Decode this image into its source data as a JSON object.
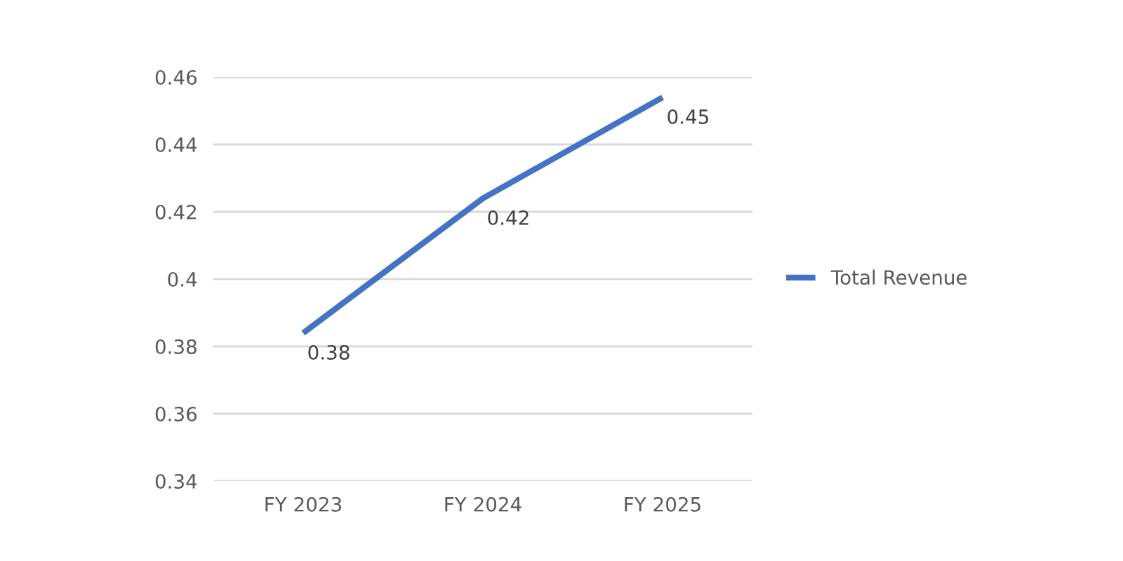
{
  "chart_data": {
    "type": "line",
    "categories": [
      "FY 2023",
      "FY 2024",
      "FY 2025"
    ],
    "series": [
      {
        "name": "Total Revenue",
        "color": "#4472c4",
        "values": [
          0.384,
          0.424,
          0.454
        ],
        "value_labels": [
          "0.38",
          "0.42",
          "0.45"
        ]
      }
    ],
    "ylim": [
      0.34,
      0.46
    ],
    "yticks": [
      0.34,
      0.36,
      0.38,
      {
        "value": 0.4,
        "label": "0.4"
      },
      0.42,
      0.44,
      0.46
    ],
    "grid": "y",
    "legend": "right",
    "marker": "none",
    "line_style": "solid"
  }
}
